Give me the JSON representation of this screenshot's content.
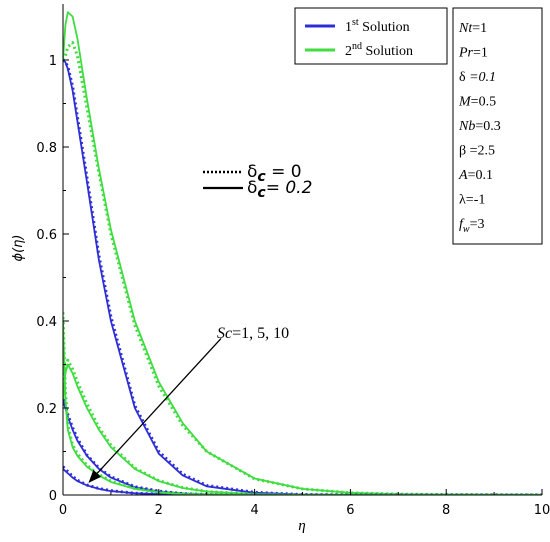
{
  "chart_data": {
    "type": "line",
    "title": "",
    "xlabel": "η",
    "ylabel": "ϕ(η)",
    "xlim": [
      0,
      10
    ],
    "ylim": [
      0,
      1.12
    ],
    "x_ticks": [
      "0",
      "2",
      "4",
      "6",
      "8",
      "10"
    ],
    "y_ticks": [
      "0",
      "0.2",
      "0.4",
      "0.6",
      "0.8",
      "1"
    ],
    "grid": false,
    "colors": {
      "first_solution": "#2e2ed6",
      "second_solution": "#3fdd3f",
      "arrow": "#000000"
    },
    "legend_solutions": {
      "placement": "top-right",
      "entries": [
        {
          "label": "1st Solution",
          "base": "1",
          "sup": "st",
          "rest": " Solution",
          "color": "#2e2ed6"
        },
        {
          "label": "2nd Solution",
          "base": "2",
          "sup": "nd",
          "rest": " Solution",
          "color": "#3fdd3f"
        }
      ]
    },
    "legend_delta": {
      "placement": "center",
      "entries": [
        {
          "style": "dotted",
          "symbol": "δ",
          "sub": "c",
          "label": "δc = 0",
          "value_text": " = 0"
        },
        {
          "style": "solid",
          "symbol": "δ",
          "sub": "c",
          "label": "δc = 0.2",
          "value_text": "= 0.2"
        }
      ]
    },
    "parameters": [
      {
        "name": "Nt",
        "value": "=1"
      },
      {
        "name": "Pr",
        "value": "=1"
      },
      {
        "name": "δ",
        "value": " =0.1"
      },
      {
        "name": "M",
        "value": "=0.5"
      },
      {
        "name": "Nb",
        "value": "=0.3"
      },
      {
        "name": "β",
        "value": " =2.5"
      },
      {
        "name": "A",
        "value": "=0.1"
      },
      {
        "name": "λ",
        "value": "=-1"
      },
      {
        "name": "fw",
        "value": "=3"
      }
    ],
    "annotation": {
      "text": "Sc=1, 5, 10",
      "name": "Sc",
      "value": "=1, 5, 10",
      "arrow_from": [
        3.3,
        0.36
      ],
      "arrow_to": [
        0.55,
        0.03
      ]
    },
    "x": [
      0,
      0.05,
      0.1,
      0.2,
      0.3,
      0.5,
      0.75,
      1,
      1.5,
      2,
      2.5,
      3,
      4,
      5,
      6,
      7,
      8,
      10
    ],
    "series": [
      {
        "solution": "1st",
        "Sc": 1,
        "dash": "solid",
        "color": "#2e2ed6",
        "values": [
          1.0,
          0.995,
          0.98,
          0.93,
          0.86,
          0.72,
          0.54,
          0.4,
          0.2,
          0.095,
          0.045,
          0.02,
          0.005,
          0.001,
          0,
          0,
          0,
          0
        ]
      },
      {
        "solution": "1st",
        "Sc": 1,
        "dash": "dotted",
        "color": "#2e2ed6",
        "values": [
          1.0,
          0.995,
          0.985,
          0.94,
          0.87,
          0.73,
          0.55,
          0.41,
          0.205,
          0.1,
          0.048,
          0.022,
          0.006,
          0.001,
          0,
          0,
          0,
          0
        ]
      },
      {
        "solution": "2nd",
        "Sc": 1,
        "dash": "solid",
        "color": "#3fdd3f",
        "values": [
          1.0,
          1.08,
          1.11,
          1.1,
          1.05,
          0.91,
          0.75,
          0.61,
          0.4,
          0.26,
          0.165,
          0.1,
          0.038,
          0.014,
          0.005,
          0.002,
          0.001,
          0
        ]
      },
      {
        "solution": "2nd",
        "Sc": 1,
        "dash": "dotted",
        "color": "#3fdd3f",
        "values": [
          1.0,
          1.01,
          1.03,
          1.04,
          1.01,
          0.89,
          0.74,
          0.6,
          0.39,
          0.25,
          0.16,
          0.1,
          0.037,
          0.014,
          0.005,
          0.002,
          0.001,
          0
        ]
      },
      {
        "solution": "1st",
        "Sc": 5,
        "dash": "solid",
        "color": "#2e2ed6",
        "values": [
          0.22,
          0.2,
          0.18,
          0.15,
          0.125,
          0.09,
          0.06,
          0.04,
          0.018,
          0.008,
          0.003,
          0.001,
          0,
          0,
          0,
          0,
          0,
          0
        ]
      },
      {
        "solution": "1st",
        "Sc": 5,
        "dash": "dotted",
        "color": "#2e2ed6",
        "values": [
          0.22,
          0.205,
          0.185,
          0.155,
          0.13,
          0.092,
          0.062,
          0.042,
          0.019,
          0.009,
          0.003,
          0.001,
          0,
          0,
          0,
          0,
          0,
          0
        ]
      },
      {
        "solution": "2nd",
        "Sc": 5,
        "dash": "solid",
        "color": "#3fdd3f",
        "values": [
          0.22,
          0.28,
          0.3,
          0.28,
          0.25,
          0.2,
          0.15,
          0.11,
          0.06,
          0.032,
          0.016,
          0.008,
          0.002,
          0,
          0,
          0,
          0,
          0
        ]
      },
      {
        "solution": "2nd",
        "Sc": 5,
        "dash": "dotted",
        "color": "#3fdd3f",
        "values": [
          0.24,
          0.3,
          0.31,
          0.29,
          0.26,
          0.21,
          0.155,
          0.115,
          0.062,
          0.033,
          0.017,
          0.008,
          0.002,
          0,
          0,
          0,
          0,
          0
        ]
      },
      {
        "solution": "1st",
        "Sc": 10,
        "dash": "solid",
        "color": "#2e2ed6",
        "values": [
          0.06,
          0.055,
          0.05,
          0.04,
          0.032,
          0.022,
          0.014,
          0.009,
          0.004,
          0.002,
          0.001,
          0,
          0,
          0,
          0,
          0,
          0,
          0
        ]
      },
      {
        "solution": "1st",
        "Sc": 10,
        "dash": "dotted",
        "color": "#2e2ed6",
        "values": [
          0.065,
          0.06,
          0.054,
          0.043,
          0.034,
          0.023,
          0.015,
          0.01,
          0.004,
          0.002,
          0.001,
          0,
          0,
          0,
          0,
          0,
          0,
          0
        ]
      },
      {
        "solution": "2nd",
        "Sc": 10,
        "dash": "solid",
        "color": "#3fdd3f",
        "values": [
          0.4,
          0.22,
          0.15,
          0.11,
          0.09,
          0.065,
          0.045,
          0.03,
          0.014,
          0.006,
          0.002,
          0.001,
          0,
          0,
          0,
          0,
          0,
          0
        ]
      },
      {
        "solution": "2nd",
        "Sc": 10,
        "dash": "dotted",
        "color": "#3fdd3f",
        "values": [
          0.42,
          0.24,
          0.16,
          0.115,
          0.095,
          0.068,
          0.047,
          0.032,
          0.015,
          0.007,
          0.003,
          0.001,
          0,
          0,
          0,
          0,
          0,
          0
        ]
      }
    ]
  }
}
